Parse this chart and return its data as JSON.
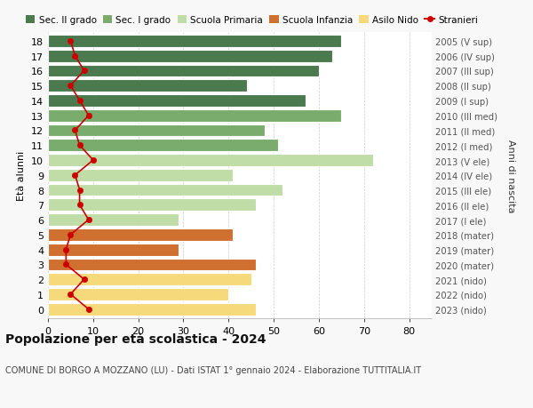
{
  "ages": [
    18,
    17,
    16,
    15,
    14,
    13,
    12,
    11,
    10,
    9,
    8,
    7,
    6,
    5,
    4,
    3,
    2,
    1,
    0
  ],
  "years": [
    "2005 (V sup)",
    "2006 (IV sup)",
    "2007 (III sup)",
    "2008 (II sup)",
    "2009 (I sup)",
    "2010 (III med)",
    "2011 (II med)",
    "2012 (I med)",
    "2013 (V ele)",
    "2014 (IV ele)",
    "2015 (III ele)",
    "2016 (II ele)",
    "2017 (I ele)",
    "2018 (mater)",
    "2019 (mater)",
    "2020 (mater)",
    "2021 (nido)",
    "2022 (nido)",
    "2023 (nido)"
  ],
  "bar_values": [
    65,
    63,
    60,
    44,
    57,
    65,
    48,
    51,
    72,
    41,
    52,
    46,
    29,
    41,
    29,
    46,
    45,
    40,
    46
  ],
  "stranieri_values": [
    5,
    6,
    8,
    5,
    7,
    9,
    6,
    7,
    10,
    6,
    7,
    7,
    9,
    5,
    4,
    4,
    8,
    5,
    9
  ],
  "bar_colors": [
    "#4a7a4e",
    "#4a7a4e",
    "#4a7a4e",
    "#4a7a4e",
    "#4a7a4e",
    "#7aac6e",
    "#7aac6e",
    "#7aac6e",
    "#c0dda8",
    "#c0dda8",
    "#c0dda8",
    "#c0dda8",
    "#c0dda8",
    "#d07030",
    "#d07030",
    "#d07030",
    "#f5d97a",
    "#f5d97a",
    "#f5d97a"
  ],
  "legend_labels": [
    "Sec. II grado",
    "Sec. I grado",
    "Scuola Primaria",
    "Scuola Infanzia",
    "Asilo Nido",
    "Stranieri"
  ],
  "legend_colors": [
    "#4a7a4e",
    "#7aac6e",
    "#c0dda8",
    "#d07030",
    "#f5d97a",
    "#cc0000"
  ],
  "title": "Popolazione per età scolastica - 2024",
  "subtitle": "COMUNE DI BORGO A MOZZANO (LU) - Dati ISTAT 1° gennaio 2024 - Elaborazione TUTTITALIA.IT",
  "ylabel": "Età alunni",
  "right_label": "Anni di nascita",
  "xlim": [
    0,
    85
  ],
  "xticks": [
    0,
    10,
    20,
    30,
    40,
    50,
    60,
    70,
    80
  ],
  "background_color": "#f8f8f8",
  "plot_bg_color": "#ffffff",
  "grid_color": "#cccccc",
  "stranieri_color": "#cc0000",
  "bar_height": 0.82
}
